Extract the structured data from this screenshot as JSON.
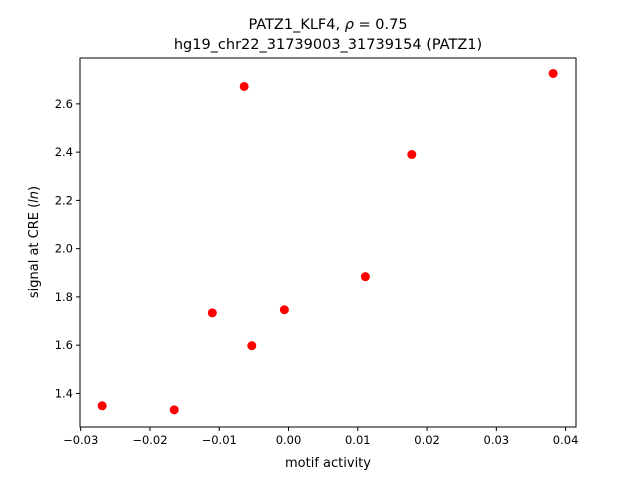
{
  "chart_data": {
    "type": "scatter",
    "title_line1_prefix": "PATZ1_KLF4, ",
    "title_rho_symbol": "ρ",
    "title_rho_value": " = 0.75",
    "title_line2": "hg19_chr22_31739003_31739154 (PATZ1)",
    "xlabel": "motif activity",
    "ylabel_prefix": "signal at CRE (",
    "ylabel_italic": "ln",
    "ylabel_suffix": ")",
    "xlim": [
      -0.0301,
      0.0415
    ],
    "ylim": [
      1.261,
      2.79
    ],
    "xticks": [
      -0.03,
      -0.02,
      -0.01,
      0.0,
      0.01,
      0.02,
      0.03,
      0.04
    ],
    "xtick_labels": [
      "−0.03",
      "−0.02",
      "−0.01",
      "0.00",
      "0.01",
      "0.02",
      "0.03",
      "0.04"
    ],
    "yticks": [
      1.4,
      1.6,
      1.8,
      2.0,
      2.2,
      2.4,
      2.6
    ],
    "ytick_labels": [
      "1.4",
      "1.6",
      "1.8",
      "2.0",
      "2.2",
      "2.4",
      "2.6"
    ],
    "grid": false,
    "marker_color": "#ff0000",
    "points": [
      {
        "x": -0.0269,
        "y": 1.349
      },
      {
        "x": -0.0165,
        "y": 1.332
      },
      {
        "x": -0.011,
        "y": 1.734
      },
      {
        "x": -0.0064,
        "y": 2.672
      },
      {
        "x": -0.0053,
        "y": 1.598
      },
      {
        "x": -0.0006,
        "y": 1.747
      },
      {
        "x": 0.0111,
        "y": 1.884
      },
      {
        "x": 0.0178,
        "y": 2.39
      },
      {
        "x": 0.0382,
        "y": 2.726
      }
    ]
  }
}
